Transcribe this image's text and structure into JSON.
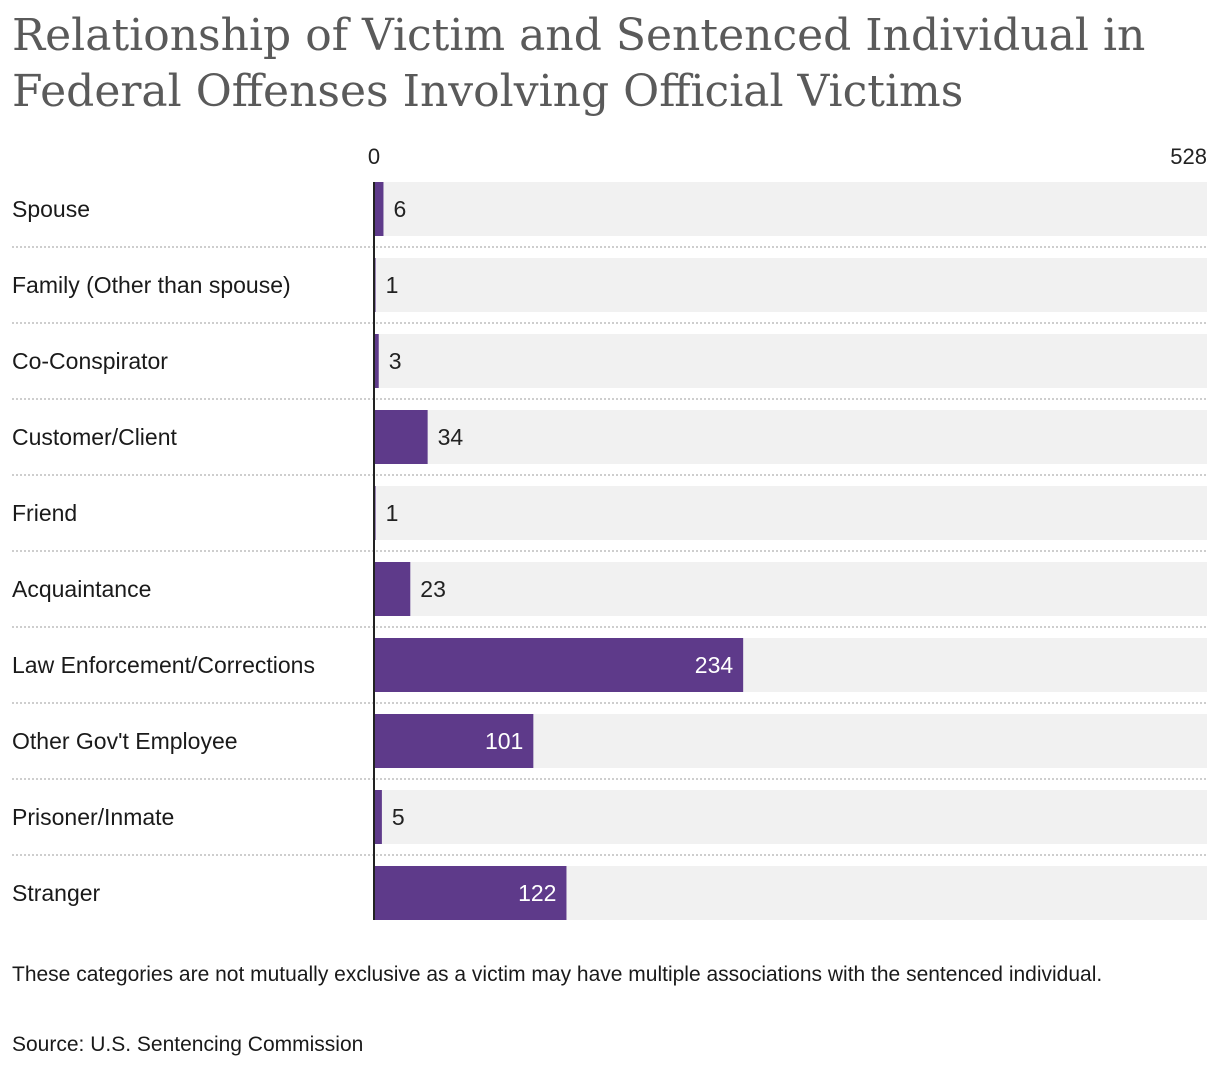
{
  "title": "Relationship of Victim and Sentenced Individual in Federal Offenses Involving Official Victims",
  "note": "These categories are not mutually exclusive as a victim may have multiple associations with the sentenced individual.",
  "source": "Source: U.S. Sentencing Commission",
  "colors": {
    "bar": "#5e3a8a",
    "track": "#f1f1f1",
    "label_inside": "#ffffff",
    "label_outside": "#222222"
  },
  "chart_data": {
    "type": "bar",
    "orientation": "horizontal",
    "categories": [
      "Spouse",
      "Family (Other than spouse)",
      "Co-Conspirator",
      "Customer/Client",
      "Friend",
      "Acquaintance",
      "Law Enforcement/Corrections",
      "Other Gov't Employee",
      "Prisoner/Inmate",
      "Stranger"
    ],
    "values": [
      6,
      1,
      3,
      34,
      1,
      23,
      234,
      101,
      5,
      122
    ],
    "xlim": [
      0,
      528
    ],
    "axis_tick_labels": [
      "0",
      "528"
    ],
    "grid": false
  }
}
